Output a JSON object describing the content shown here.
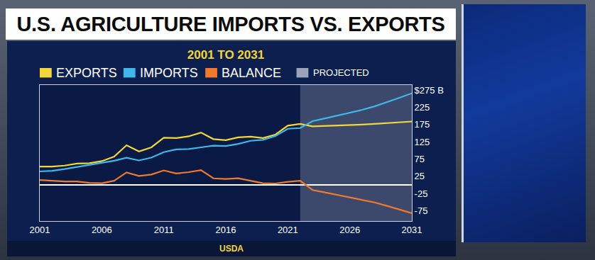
{
  "chart_data": {
    "type": "line",
    "title": "U.S. AGRICULTURE IMPORTS VS. EXPORTS",
    "subtitle": "2001 TO 2031",
    "source": "USDA",
    "x": [
      2001,
      2002,
      2003,
      2004,
      2005,
      2006,
      2007,
      2008,
      2009,
      2010,
      2011,
      2012,
      2013,
      2014,
      2015,
      2016,
      2017,
      2018,
      2019,
      2020,
      2021,
      2022,
      2023,
      2024,
      2025,
      2026,
      2027,
      2028,
      2029,
      2030,
      2031
    ],
    "series": [
      {
        "name": "EXPORTS",
        "color": "#f2d63a",
        "values": [
          53,
          53,
          56,
          62,
          63,
          69,
          82,
          115,
          97,
          109,
          137,
          136,
          141,
          152,
          133,
          130,
          138,
          140,
          136,
          146,
          172,
          177,
          170,
          171,
          172,
          173,
          175,
          177,
          179,
          181,
          184
        ]
      },
      {
        "name": "IMPORTS",
        "color": "#3fb7e8",
        "values": [
          39,
          41,
          46,
          52,
          57,
          64,
          70,
          79,
          71,
          79,
          95,
          103,
          104,
          109,
          114,
          113,
          119,
          128,
          131,
          142,
          163,
          165,
          185,
          193,
          201,
          209,
          218,
          228,
          240,
          253,
          266
        ]
      },
      {
        "name": "BALANCE",
        "color": "#f07a2c",
        "values": [
          14,
          12,
          10,
          10,
          6,
          5,
          12,
          36,
          26,
          30,
          42,
          33,
          37,
          43,
          19,
          17,
          19,
          12,
          5,
          4,
          9,
          12,
          -15,
          -22,
          -29,
          -36,
          -43,
          -51,
          -61,
          -72,
          -82
        ]
      }
    ],
    "projected": {
      "label": "PROJECTED",
      "color": "#9aa3b8",
      "x": [
        2022,
        2031
      ]
    },
    "xlim": [
      2001,
      2031
    ],
    "xticks": [
      2001,
      2006,
      2011,
      2016,
      2021,
      2026,
      2031
    ],
    "ylim": [
      -105,
      290
    ],
    "yticks": [
      -75,
      -25,
      25,
      75,
      125,
      175,
      225,
      {
        "value": 275,
        "label": "$275 B"
      }
    ],
    "grid": false,
    "legend": "top"
  }
}
